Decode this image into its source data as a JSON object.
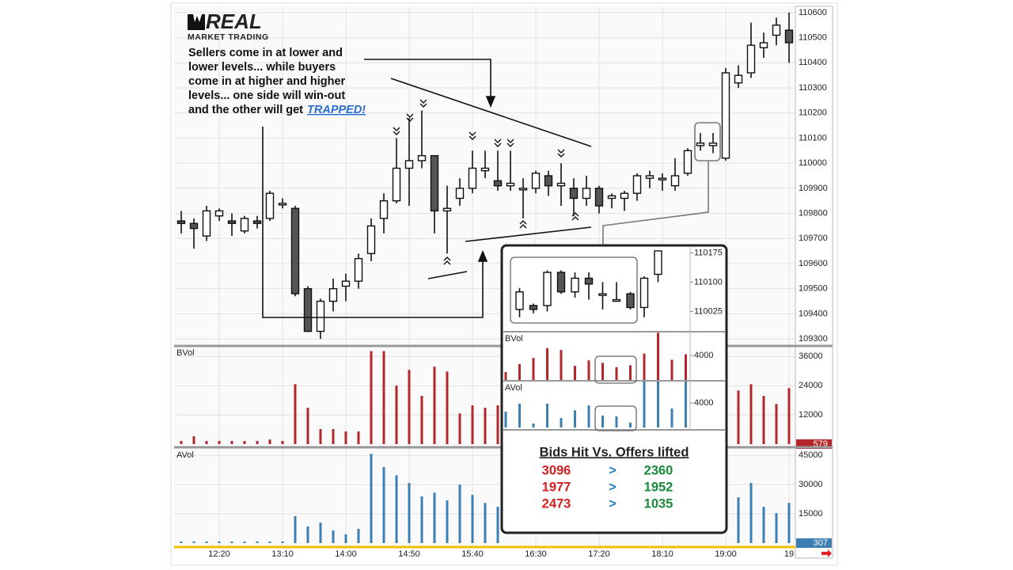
{
  "logo": {
    "brand": "REAL",
    "tagline": "MARKET TRADING"
  },
  "note": {
    "lines": [
      "Sellers come in at lower and",
      "lower levels... while buyers",
      "come in at higher and higher",
      "levels... one side will win-out"
    ],
    "tail": "and the other will get",
    "link": "TRAPPED!"
  },
  "chart_data": [
    {
      "type": "candlestick",
      "categories": [
        null,
        null,
        null,
        "12:20",
        null,
        null,
        null,
        null,
        "13:10",
        null,
        null,
        null,
        null,
        "14:00",
        null,
        null,
        null,
        null,
        "14:50",
        null,
        null,
        null,
        null,
        "15:40",
        null,
        null,
        null,
        null,
        "16:30",
        null,
        null,
        null,
        null,
        "17:20",
        null,
        null,
        null,
        null,
        "18:10",
        null,
        null,
        null,
        null,
        "19:00",
        null,
        null,
        null,
        null,
        "19"
      ],
      "open": [
        109770,
        109760,
        109710,
        109790,
        109770,
        109730,
        109770,
        109780,
        109840,
        109820,
        109500,
        109330,
        109450,
        109510,
        109530,
        109640,
        109780,
        109850,
        109980,
        110010,
        110030,
        109810,
        109860,
        109900,
        109970,
        109930,
        109910,
        109900,
        109900,
        109950,
        109910,
        109900,
        109860,
        109900,
        109860,
        109860,
        109880,
        109940,
        109940,
        109910,
        109960,
        110070,
        110070,
        110020,
        110320,
        110360,
        110460,
        110510,
        110530
      ],
      "high": [
        109810,
        109780,
        109830,
        109820,
        109800,
        109790,
        109790,
        109890,
        109860,
        109830,
        109510,
        109460,
        109540,
        109560,
        109640,
        109780,
        109880,
        110100,
        110180,
        110210,
        110030,
        109910,
        109940,
        110050,
        110050,
        110050,
        110050,
        109940,
        109970,
        109970,
        110000,
        109940,
        109950,
        109910,
        109880,
        109890,
        109960,
        109970,
        109960,
        110020,
        110060,
        110120,
        110120,
        110380,
        110390,
        110560,
        110520,
        110580,
        110600
      ],
      "low": [
        109720,
        109660,
        109690,
        109770,
        109710,
        109720,
        109740,
        109770,
        109820,
        109470,
        109330,
        109300,
        109410,
        109450,
        109500,
        109610,
        109720,
        109840,
        109830,
        109980,
        109720,
        109640,
        109830,
        109880,
        109940,
        109890,
        109890,
        109780,
        109880,
        109870,
        109830,
        109790,
        109830,
        109800,
        109820,
        109810,
        109850,
        109900,
        109890,
        109890,
        109950,
        110050,
        110040,
        110010,
        110300,
        110340,
        110420,
        110470,
        110400
      ],
      "close": [
        109760,
        109740,
        109810,
        109810,
        109760,
        109780,
        109760,
        109880,
        109840,
        109480,
        109330,
        109450,
        109500,
        109530,
        109620,
        109750,
        109850,
        109980,
        110010,
        110030,
        109810,
        109820,
        109900,
        109980,
        109980,
        109910,
        109920,
        109900,
        109960,
        109910,
        109920,
        109860,
        109900,
        109830,
        109870,
        109880,
        109950,
        109950,
        109940,
        109950,
        110050,
        110080,
        110080,
        110360,
        110350,
        110470,
        110480,
        110550,
        110480
      ],
      "up_color": "#ffffff",
      "down_color": "#555555",
      "ylim": [
        109275,
        110625
      ],
      "yticks": [
        109300,
        109400,
        109500,
        109600,
        109700,
        109800,
        109900,
        110000,
        110100,
        110200,
        110300,
        110400,
        110500,
        110600
      ],
      "grid": true
    },
    {
      "type": "bar",
      "title": "BVol",
      "color": "#b3262b",
      "values": [
        1300,
        3200,
        1300,
        1300,
        1300,
        1300,
        1300,
        1900,
        1300,
        24600,
        14900,
        6200,
        6200,
        5200,
        5200,
        38200,
        38200,
        24000,
        30500,
        19800,
        31800,
        29800,
        12600,
        15900,
        14900,
        15900,
        null,
        null,
        null,
        null,
        null,
        null,
        null,
        null,
        null,
        null,
        null,
        null,
        null,
        null,
        null,
        null,
        null,
        null,
        22000,
        24600,
        19800,
        16500,
        23000
      ],
      "last_value": 579,
      "ylim": [
        0,
        39000
      ],
      "yticks": [
        12000,
        24000,
        36000
      ],
      "grid": true
    },
    {
      "type": "bar",
      "title": "AVol",
      "color": "#3d7fb3",
      "values": [
        800,
        800,
        800,
        800,
        800,
        800,
        800,
        800,
        800,
        13800,
        8500,
        10500,
        6500,
        4500,
        7300,
        45800,
        39000,
        34800,
        30800,
        23900,
        25900,
        21900,
        30000,
        24700,
        20600,
        18600,
        null,
        null,
        null,
        null,
        null,
        null,
        null,
        null,
        null,
        null,
        null,
        null,
        null,
        null,
        null,
        null,
        null,
        null,
        23500,
        30800,
        18600,
        15400,
        20600
      ],
      "last_value": 307,
      "ylim": [
        0,
        47500
      ],
      "yticks": [
        15000,
        30000,
        45000
      ],
      "grid": true
    }
  ],
  "inset": {
    "price": {
      "type": "candlestick",
      "open": [
        null,
        110030,
        110040,
        110040,
        110125,
        110075,
        110110,
        110070,
        110055,
        110070,
        110035,
        110120,
        null,
        null
      ],
      "high": [
        null,
        110085,
        110045,
        110130,
        110130,
        110125,
        110125,
        110100,
        110100,
        110075,
        110115,
        110180,
        null,
        null
      ],
      "low": [
        null,
        110010,
        110020,
        110025,
        110070,
        110060,
        110055,
        110030,
        110050,
        110030,
        110010,
        110100,
        null,
        null
      ],
      "close": [
        null,
        110075,
        110030,
        110125,
        110075,
        110110,
        110095,
        110070,
        110055,
        110035,
        110110,
        110180,
        null,
        null
      ],
      "up_color": "#ffffff",
      "down_color": "#555555",
      "ylim": [
        109975,
        110190
      ],
      "yticks": [
        110025,
        110100,
        110175
      ]
    },
    "bvol": {
      "type": "bar",
      "title": "BVol",
      "color": "#b3262b",
      "values": [
        1300,
        2600,
        3600,
        5200,
        4900,
        2300,
        3200,
        2800,
        2100,
        2400,
        4300,
        7700,
        3300,
        4200
      ],
      "ylim": [
        0,
        7750
      ],
      "yticks": [
        4000
      ]
    },
    "avol": {
      "type": "bar",
      "title": "AVol",
      "color": "#3d7fb3",
      "values": [
        2600,
        3900,
        650,
        3900,
        1550,
        2800,
        3600,
        1950,
        1800,
        800,
        7500,
        7500,
        3100,
        7500
      ],
      "ylim": [
        0,
        7500
      ],
      "yticks": [
        4000
      ]
    },
    "table": {
      "header": "Bids Hit Vs. Offers lifted",
      "rows": [
        [
          3096,
          ">",
          2360
        ],
        [
          1977,
          ">",
          1952
        ],
        [
          2473,
          ">",
          1035
        ]
      ]
    }
  }
}
